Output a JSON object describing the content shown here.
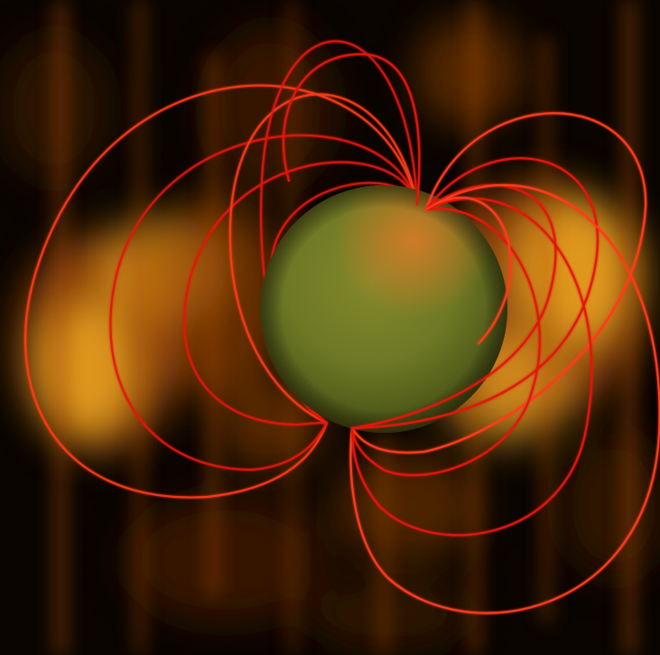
{
  "image": {
    "subject": "magnetized-star-with-field-lines",
    "palette": {
      "background": "#0a0501",
      "nebula_dark": "#3a1a05",
      "nebula_mid": "#a04a0a",
      "nebula_glow": "#e8a020",
      "nebula_hot": "#f2c233",
      "star_base": "#6f7a25",
      "star_shadow": "#3a4410",
      "star_highlight": "#e07a25",
      "field_line": "#e01810",
      "field_line_bright": "#ff3a1a"
    }
  }
}
